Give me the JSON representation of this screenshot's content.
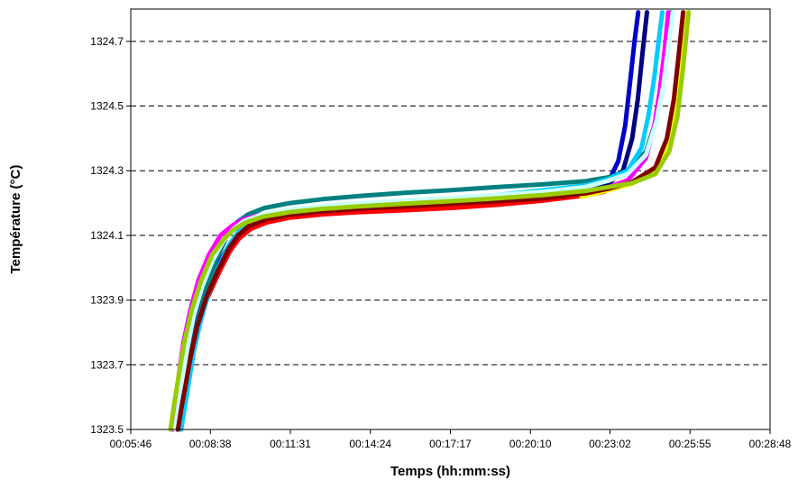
{
  "chart_data": {
    "type": "line",
    "title": "",
    "xlabel": "Temps (hh:mm:ss)",
    "ylabel": "Température (°C)",
    "x_ticks": [
      "00:05:46",
      "00:08:38",
      "00:11:31",
      "00:14:24",
      "00:17:17",
      "00:20:10",
      "00:23:02",
      "00:25:55",
      "00:28:48"
    ],
    "y_ticks": [
      "1323.5",
      "1323.7",
      "1323.9",
      "1324.1",
      "1324.3",
      "1324.5",
      "1324.7"
    ],
    "xlim": [
      "00:05:46",
      "00:28:48"
    ],
    "ylim": [
      1323.5,
      1324.8
    ],
    "grid": "horizontal dashed",
    "legend": "none",
    "series": [
      {
        "color": "#ff0000",
        "x": [
          "00:07:30",
          "00:07:37",
          "00:07:45",
          "00:07:55",
          "00:08:10",
          "00:08:30",
          "00:08:55",
          "00:09:20",
          "00:09:40",
          "00:10:05",
          "00:10:40",
          "00:11:30",
          "00:12:40",
          "00:14:00",
          "00:15:40",
          "00:17:20",
          "00:19:00",
          "00:20:40",
          "00:22:00",
          "00:22:50"
        ],
        "y": [
          1323.5,
          1323.56,
          1323.63,
          1323.72,
          1323.81,
          1323.9,
          1323.98,
          1324.05,
          1324.09,
          1324.12,
          1324.14,
          1324.155,
          1324.165,
          1324.172,
          1324.178,
          1324.185,
          1324.195,
          1324.208,
          1324.222,
          1324.235
        ]
      },
      {
        "color": "#0000cc",
        "x": [
          "00:07:20",
          "00:07:28",
          "00:07:37",
          "00:07:48",
          "00:08:05",
          "00:08:25",
          "00:08:50",
          "00:09:15",
          "00:09:35",
          "00:10:00",
          "00:10:35",
          "00:11:30",
          "00:12:40",
          "00:14:00",
          "00:15:40",
          "00:17:20",
          "00:19:00",
          "00:20:40",
          "00:22:10",
          "00:23:00",
          "00:23:20",
          "00:23:35",
          "00:23:45",
          "00:23:55",
          "00:24:03"
        ],
        "y": [
          1323.5,
          1323.58,
          1323.65,
          1323.74,
          1323.83,
          1323.92,
          1324.0,
          1324.06,
          1324.1,
          1324.13,
          1324.15,
          1324.165,
          1324.175,
          1324.185,
          1324.195,
          1324.205,
          1324.215,
          1324.225,
          1324.24,
          1324.27,
          1324.33,
          1324.44,
          1324.57,
          1324.7,
          1324.79
        ]
      },
      {
        "color": "#000080",
        "x": [
          "00:07:25",
          "00:07:33",
          "00:07:42",
          "00:07:53",
          "00:08:08",
          "00:08:28",
          "00:08:52",
          "00:09:18",
          "00:09:38",
          "00:10:02",
          "00:10:38",
          "00:11:30",
          "00:12:40",
          "00:14:00",
          "00:15:40",
          "00:17:20",
          "00:19:00",
          "00:20:40",
          "00:22:10",
          "00:23:00",
          "00:23:30",
          "00:23:50",
          "00:24:02",
          "00:24:12",
          "00:24:22"
        ],
        "y": [
          1323.5,
          1323.57,
          1323.64,
          1323.73,
          1323.82,
          1323.91,
          1323.99,
          1324.06,
          1324.1,
          1324.13,
          1324.15,
          1324.165,
          1324.175,
          1324.183,
          1324.192,
          1324.2,
          1324.21,
          1324.22,
          1324.235,
          1324.26,
          1324.3,
          1324.4,
          1324.52,
          1324.66,
          1324.79
        ]
      },
      {
        "color": "#008080",
        "x": [
          "00:07:30",
          "00:07:38",
          "00:07:47",
          "00:07:58",
          "00:08:12",
          "00:08:30",
          "00:08:52",
          "00:09:15",
          "00:09:35",
          "00:10:00",
          "00:10:35",
          "00:11:30",
          "00:12:40",
          "00:14:00",
          "00:15:40",
          "00:17:20",
          "00:19:00",
          "00:20:40",
          "00:22:10",
          "00:23:00",
          "00:23:40",
          "00:24:20",
          "00:24:40",
          "00:24:55",
          "00:25:05",
          "00:25:15"
        ],
        "y": [
          1323.5,
          1323.58,
          1323.66,
          1323.75,
          1323.84,
          1323.94,
          1324.03,
          1324.1,
          1324.14,
          1324.165,
          1324.185,
          1324.2,
          1324.212,
          1324.222,
          1324.232,
          1324.24,
          1324.25,
          1324.258,
          1324.268,
          1324.28,
          1324.3,
          1324.36,
          1324.45,
          1324.56,
          1324.68,
          1324.79
        ]
      },
      {
        "color": "#ff00ff",
        "x": [
          "00:07:15",
          "00:07:22",
          "00:07:30",
          "00:07:40",
          "00:07:55",
          "00:08:12",
          "00:08:35",
          "00:09:00",
          "00:09:25",
          "00:09:50",
          "00:10:30",
          "00:11:30",
          "00:12:40",
          "00:14:00",
          "00:15:40",
          "00:17:20",
          "00:19:00",
          "00:20:40",
          "00:22:10",
          "00:23:00",
          "00:23:40",
          "00:24:20",
          "00:24:38",
          "00:24:50",
          "00:25:00",
          "00:25:08"
        ],
        "y": [
          1323.5,
          1323.58,
          1323.67,
          1323.77,
          1323.87,
          1323.96,
          1324.04,
          1324.1,
          1324.13,
          1324.15,
          1324.165,
          1324.175,
          1324.183,
          1324.19,
          1324.197,
          1324.205,
          1324.212,
          1324.22,
          1324.235,
          1324.25,
          1324.27,
          1324.34,
          1324.44,
          1324.55,
          1324.67,
          1324.79
        ]
      },
      {
        "color": "#00ccff",
        "x": [
          "00:07:35",
          "00:07:43",
          "00:07:52",
          "00:08:02",
          "00:08:16",
          "00:08:34",
          "00:08:55",
          "00:09:18",
          "00:09:38",
          "00:10:02",
          "00:10:38",
          "00:11:30",
          "00:12:40",
          "00:14:00",
          "00:15:40",
          "00:17:20",
          "00:19:00",
          "00:20:40",
          "00:22:10",
          "00:23:00",
          "00:23:40",
          "00:24:10",
          "00:24:25",
          "00:24:37",
          "00:24:47",
          "00:24:55"
        ],
        "y": [
          1323.5,
          1323.57,
          1323.65,
          1323.74,
          1323.83,
          1323.92,
          1324.0,
          1324.07,
          1324.11,
          1324.14,
          1324.16,
          1324.175,
          1324.185,
          1324.195,
          1324.205,
          1324.215,
          1324.225,
          1324.24,
          1324.255,
          1324.275,
          1324.3,
          1324.37,
          1324.47,
          1324.58,
          1324.7,
          1324.79
        ]
      },
      {
        "color": "#ccffff",
        "x": [
          "00:07:22",
          "00:07:30",
          "00:07:38",
          "00:07:48",
          "00:08:02",
          "00:08:20",
          "00:08:42",
          "00:09:05",
          "00:09:28",
          "00:09:52",
          "00:10:30",
          "00:11:30",
          "00:12:40",
          "00:14:00",
          "00:15:40",
          "00:17:20",
          "00:19:00",
          "00:20:40",
          "00:22:10",
          "00:23:00",
          "00:23:40",
          "00:24:20",
          "00:24:42",
          "00:24:57",
          "00:25:08",
          "00:25:18"
        ],
        "y": [
          1323.5,
          1323.58,
          1323.66,
          1323.75,
          1323.85,
          1323.94,
          1324.02,
          1324.08,
          1324.12,
          1324.145,
          1324.165,
          1324.18,
          1324.19,
          1324.2,
          1324.208,
          1324.216,
          1324.225,
          1324.235,
          1324.25,
          1324.27,
          1324.29,
          1324.35,
          1324.45,
          1324.56,
          1324.68,
          1324.79
        ]
      },
      {
        "color": "#ffff00",
        "x": [
          "00:22:00",
          "00:23:00",
          "00:23:50",
          "00:24:40",
          "00:25:05",
          "00:25:20",
          "00:25:30",
          "00:25:40",
          "00:25:48"
        ],
        "y": [
          1324.22,
          1324.24,
          1324.26,
          1324.3,
          1324.36,
          1324.45,
          1324.55,
          1324.67,
          1324.79
        ]
      },
      {
        "color": "#800000",
        "x": [
          "00:07:28",
          "00:07:36",
          "00:07:45",
          "00:07:56",
          "00:08:10",
          "00:08:30",
          "00:08:54",
          "00:09:18",
          "00:09:38",
          "00:10:02",
          "00:10:38",
          "00:11:30",
          "00:12:40",
          "00:14:00",
          "00:15:40",
          "00:17:20",
          "00:19:00",
          "00:20:40",
          "00:22:10",
          "00:23:00",
          "00:23:50",
          "00:24:40",
          "00:25:05",
          "00:25:20",
          "00:25:30",
          "00:25:40"
        ],
        "y": [
          1323.5,
          1323.57,
          1323.64,
          1323.73,
          1323.82,
          1323.91,
          1323.99,
          1324.06,
          1324.1,
          1324.13,
          1324.15,
          1324.165,
          1324.175,
          1324.183,
          1324.19,
          1324.198,
          1324.206,
          1324.215,
          1324.23,
          1324.245,
          1324.265,
          1324.31,
          1324.4,
          1324.52,
          1324.65,
          1324.79
        ]
      },
      {
        "color": "#99cc00",
        "x": [
          "00:07:12",
          "00:07:20",
          "00:07:30",
          "00:07:42",
          "00:07:58",
          "00:08:18",
          "00:08:42",
          "00:09:08",
          "00:09:30",
          "00:09:55",
          "00:10:32",
          "00:11:30",
          "00:12:40",
          "00:14:00",
          "00:15:40",
          "00:17:20",
          "00:19:00",
          "00:20:40",
          "00:22:10",
          "00:23:00",
          "00:23:50",
          "00:24:40",
          "00:25:10",
          "00:25:28",
          "00:25:40",
          "00:25:52"
        ],
        "y": [
          1323.5,
          1323.58,
          1323.67,
          1323.77,
          1323.87,
          1323.96,
          1324.04,
          1324.09,
          1324.12,
          1324.14,
          1324.158,
          1324.172,
          1324.182,
          1324.19,
          1324.198,
          1324.206,
          1324.215,
          1324.225,
          1324.238,
          1324.25,
          1324.262,
          1324.29,
          1324.36,
          1324.47,
          1324.62,
          1324.79
        ]
      }
    ]
  }
}
